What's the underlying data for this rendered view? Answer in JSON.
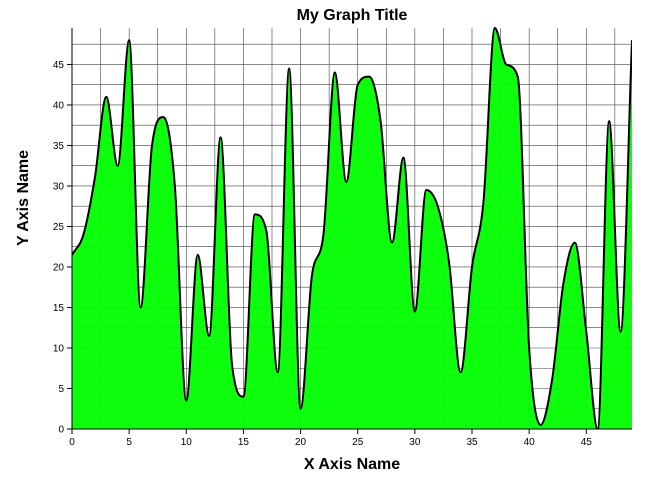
{
  "chart_data": {
    "type": "area",
    "title": "My Graph Title",
    "xlabel": "X Axis Name",
    "ylabel": "Y Axis Name",
    "xlim": [
      0,
      49
    ],
    "ylim": [
      0,
      49.5
    ],
    "x_ticks": [
      0,
      5,
      10,
      15,
      20,
      25,
      30,
      35,
      40,
      45
    ],
    "y_ticks": [
      0,
      5,
      10,
      15,
      20,
      25,
      30,
      35,
      40,
      45
    ],
    "grid": true,
    "fill_color": "#00ff00",
    "line_color": "#000000",
    "series": [
      {
        "x": [
          0,
          1,
          2,
          3,
          4,
          5,
          6,
          7,
          8,
          9,
          10,
          11,
          12,
          13,
          14,
          15,
          16,
          17,
          18,
          19,
          20,
          21,
          22,
          23,
          24,
          25,
          26,
          27,
          28,
          29,
          30,
          31,
          32,
          33,
          34,
          35,
          36,
          37,
          38,
          39,
          40,
          41,
          42,
          43,
          44,
          45,
          46,
          47,
          48,
          49
        ],
        "values": [
          21.5,
          24,
          31,
          41,
          32.5,
          48,
          15,
          35,
          38.5,
          30,
          3.5,
          21.5,
          11.5,
          36,
          8,
          4,
          26.5,
          24.5,
          7,
          44.5,
          2.5,
          19,
          24,
          44,
          30.5,
          42.5,
          43.5,
          38,
          23,
          33.5,
          14.5,
          29.5,
          27.5,
          20.5,
          7,
          20,
          28,
          49.5,
          45,
          43.5,
          10,
          0.5,
          6,
          18,
          23,
          12,
          0,
          38,
          12,
          48
        ]
      }
    ]
  }
}
